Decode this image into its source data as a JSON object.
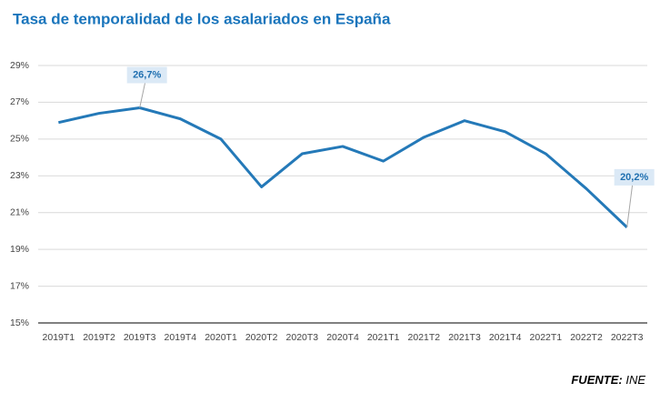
{
  "chart_data": {
    "type": "line",
    "title": "Tasa de temporalidad de los asalariados en España",
    "categories": [
      "2019T1",
      "2019T2",
      "2019T3",
      "2019T4",
      "2020T1",
      "2020T2",
      "2020T3",
      "2020T4",
      "2021T1",
      "2021T2",
      "2021T3",
      "2021T4",
      "2022T1",
      "2022T2",
      "2022T3"
    ],
    "series": [
      {
        "name": "Tasa de temporalidad",
        "color": "#2479b8",
        "values": [
          25.9,
          26.4,
          26.7,
          26.1,
          25.0,
          22.4,
          24.2,
          24.6,
          23.8,
          25.1,
          26.0,
          25.4,
          24.2,
          22.3,
          20.2
        ],
        "value_labels": [
          null,
          null,
          "26,7%",
          null,
          null,
          null,
          null,
          null,
          null,
          null,
          null,
          null,
          null,
          null,
          "20,2%"
        ]
      }
    ],
    "ylim": [
      15,
      29
    ],
    "yticks": [
      {
        "value": 15,
        "label": "15%"
      },
      {
        "value": 17,
        "label": "17%"
      },
      {
        "value": 19,
        "label": "19%"
      },
      {
        "value": 21,
        "label": "21%"
      },
      {
        "value": 23,
        "label": "23%"
      },
      {
        "value": 25,
        "label": "25%"
      },
      {
        "value": 27,
        "label": "27%"
      },
      {
        "value": 29,
        "label": "29%"
      }
    ],
    "grid": true,
    "source": {
      "label": "FUENTE:",
      "text": "INE"
    }
  }
}
